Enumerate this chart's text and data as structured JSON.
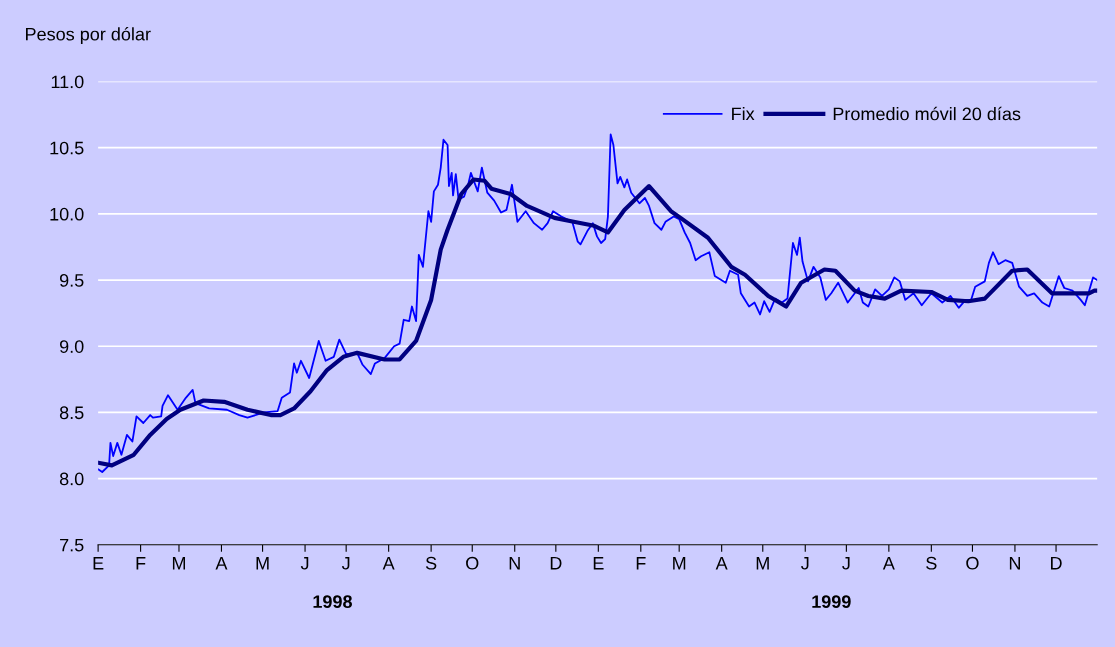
{
  "chart_data": {
    "type": "line",
    "ylabel": "Pesos por dólar",
    "xlim": [
      "1998-01-01",
      "1999-12-31"
    ],
    "ylim": [
      7.5,
      11.0
    ],
    "yticks": [
      {
        "value": 7.5,
        "label": "7.5"
      },
      {
        "value": 8.0,
        "label": "8.0"
      },
      {
        "value": 8.5,
        "label": "8.5"
      },
      {
        "value": 9.0,
        "label": "9.0"
      },
      {
        "value": 9.5,
        "label": "9.5"
      },
      {
        "value": 10.0,
        "label": "10.0"
      },
      {
        "value": 10.5,
        "label": "10.5"
      },
      {
        "value": 11.0,
        "label": "11.0"
      }
    ],
    "annotations": [
      "E",
      "F",
      "M",
      "A",
      "M",
      "J",
      "J",
      "A",
      "S",
      "O",
      "N",
      "D",
      "E",
      "F",
      "M",
      "A",
      "M",
      "J",
      "J",
      "A",
      "S",
      "O",
      "N",
      "D"
    ],
    "xticks": [
      {
        "value": "1998-01-01",
        "label": null
      },
      {
        "value": "1998-02-01",
        "label": null
      },
      {
        "value": "1998-03-01",
        "label": null
      },
      {
        "value": "1998-04-01",
        "label": null
      },
      {
        "value": "1998-05-01",
        "label": null
      },
      {
        "value": "1998-06-01",
        "label": null
      },
      {
        "value": "1998-06-21",
        "label": "1998"
      },
      {
        "value": "1998-07-01",
        "label": null
      },
      {
        "value": "1998-08-01",
        "label": null
      },
      {
        "value": "1998-09-01",
        "label": null
      },
      {
        "value": "1998-10-01",
        "label": null
      },
      {
        "value": "1998-11-01",
        "label": null
      },
      {
        "value": "1998-12-01",
        "label": null
      },
      {
        "value": "1999-01-01",
        "label": null
      },
      {
        "value": "1999-02-01",
        "label": null
      },
      {
        "value": "1999-03-01",
        "label": null
      },
      {
        "value": "1999-04-01",
        "label": null
      },
      {
        "value": "1999-05-01",
        "label": null
      },
      {
        "value": "1999-06-01",
        "label": null
      },
      {
        "value": "1999-06-20",
        "label": "1999"
      },
      {
        "value": "1999-07-01",
        "label": null
      },
      {
        "value": "1999-08-01",
        "label": null
      },
      {
        "value": "1999-09-01",
        "label": null
      },
      {
        "value": "1999-10-01",
        "label": null
      },
      {
        "value": "1999-11-01",
        "label": null
      },
      {
        "value": "1999-12-01",
        "label": null
      }
    ],
    "grid": "y",
    "legend": "top right",
    "marker": "none",
    "line_style": "solid",
    "series": [
      {
        "name": "Fix",
        "color": "#0000ff",
        "x": [
          "1998-01-01",
          "1998-01-04",
          "1998-01-09",
          "1998-01-10",
          "1998-01-12",
          "1998-01-15",
          "1998-01-18",
          "1998-01-22",
          "1998-01-26",
          "1998-01-29",
          "1998-02-03",
          "1998-02-08",
          "1998-02-10",
          "1998-02-16",
          "1998-02-17",
          "1998-02-21",
          "1998-02-28",
          "1998-03-06",
          "1998-03-11",
          "1998-03-13",
          "1998-03-23",
          "1998-04-05",
          "1998-04-14",
          "1998-04-20",
          "1998-05-02",
          "1998-05-12",
          "1998-05-15",
          "1998-05-21",
          "1998-05-24",
          "1998-05-26",
          "1998-05-29",
          "1998-06-04",
          "1998-06-06",
          "1998-06-11",
          "1998-06-16",
          "1998-06-22",
          "1998-06-26",
          "1998-07-01",
          "1998-07-09",
          "1998-07-13",
          "1998-07-19",
          "1998-07-22",
          "1998-07-29",
          "1998-08-05",
          "1998-08-09",
          "1998-08-12",
          "1998-08-16",
          "1998-08-18",
          "1998-08-21",
          "1998-08-23",
          "1998-08-26",
          "1998-08-30",
          "1998-09-01",
          "1998-09-03",
          "1998-09-06",
          "1998-09-08",
          "1998-09-10",
          "1998-09-13",
          "1998-09-14",
          "1998-09-16",
          "1998-09-17",
          "1998-09-19",
          "1998-09-21",
          "1998-09-25",
          "1998-09-28",
          "1998-09-30",
          "1998-10-05",
          "1998-10-08",
          "1998-10-12",
          "1998-10-17",
          "1998-10-22",
          "1998-10-26",
          "1998-10-30",
          "1998-11-03",
          "1998-11-09",
          "1998-11-15",
          "1998-11-21",
          "1998-11-25",
          "1998-11-29",
          "1998-12-05",
          "1998-12-13",
          "1998-12-17",
          "1998-12-19",
          "1998-12-24",
          "1998-12-28",
          "1998-12-31",
          "1999-01-03",
          "1999-01-06",
          "1999-01-08",
          "1999-01-10",
          "1999-01-12",
          "1999-01-15",
          "1999-01-17",
          "1999-01-20",
          "1999-01-22",
          "1999-01-25",
          "1999-01-31",
          "1999-02-04",
          "1999-02-07",
          "1999-02-11",
          "1999-02-16",
          "1999-02-19",
          "1999-02-25",
          "1999-03-01",
          "1999-03-05",
          "1999-03-09",
          "1999-03-13",
          "1999-03-17",
          "1999-03-23",
          "1999-03-27",
          "1999-04-04",
          "1999-04-07",
          "1999-04-13",
          "1999-04-15",
          "1999-04-21",
          "1999-04-25",
          "1999-04-29",
          "1999-05-02",
          "1999-05-06",
          "1999-05-10",
          "1999-05-15",
          "1999-05-19",
          "1999-05-23",
          "1999-05-26",
          "1999-05-28",
          "1999-05-30",
          "1999-06-03",
          "1999-06-07",
          "1999-06-12",
          "1999-06-16",
          "1999-06-20",
          "1999-06-25",
          "1999-07-02",
          "1999-07-10",
          "1999-07-13",
          "1999-07-17",
          "1999-07-22",
          "1999-07-27",
          "1999-08-01",
          "1999-08-05",
          "1999-08-09",
          "1999-08-13",
          "1999-08-19",
          "1999-08-25",
          "1999-09-01",
          "1999-09-09",
          "1999-09-15",
          "1999-09-21",
          "1999-09-26",
          "1999-09-30",
          "1999-10-03",
          "1999-10-10",
          "1999-10-13",
          "1999-10-16",
          "1999-10-20",
          "1999-10-25",
          "1999-10-30",
          "1999-11-04",
          "1999-11-10",
          "1999-11-15",
          "1999-11-21",
          "1999-11-26",
          "1999-11-29",
          "1999-12-03",
          "1999-12-07",
          "1999-12-13",
          "1999-12-19",
          "1999-12-22",
          "1999-12-28",
          "1999-12-31"
        ],
        "values": [
          8.07,
          8.05,
          8.1,
          8.27,
          8.17,
          8.27,
          8.18,
          8.33,
          8.28,
          8.47,
          8.42,
          8.48,
          8.46,
          8.47,
          8.55,
          8.63,
          8.52,
          8.61,
          8.67,
          8.57,
          8.53,
          8.52,
          8.48,
          8.46,
          8.5,
          8.51,
          8.61,
          8.65,
          8.87,
          8.8,
          8.89,
          8.76,
          8.84,
          9.04,
          8.89,
          8.92,
          9.05,
          8.94,
          8.95,
          8.86,
          8.79,
          8.87,
          8.91,
          9.0,
          9.02,
          9.2,
          9.19,
          9.3,
          9.19,
          9.69,
          9.6,
          10.02,
          9.94,
          10.17,
          10.22,
          10.35,
          10.56,
          10.52,
          10.21,
          10.31,
          10.14,
          10.3,
          10.11,
          10.13,
          10.22,
          10.31,
          10.17,
          10.35,
          10.16,
          10.1,
          10.01,
          10.03,
          10.22,
          9.94,
          10.02,
          9.93,
          9.88,
          9.93,
          10.02,
          9.98,
          9.94,
          9.79,
          9.77,
          9.87,
          9.93,
          9.83,
          9.78,
          9.81,
          9.98,
          10.6,
          10.52,
          10.23,
          10.28,
          10.2,
          10.26,
          10.16,
          10.08,
          10.12,
          10.06,
          9.93,
          9.88,
          9.94,
          9.98,
          9.96,
          9.86,
          9.78,
          9.65,
          9.68,
          9.71,
          9.53,
          9.48,
          9.57,
          9.54,
          9.4,
          9.3,
          9.33,
          9.24,
          9.34,
          9.26,
          9.36,
          9.33,
          9.36,
          9.78,
          9.69,
          9.82,
          9.64,
          9.49,
          9.6,
          9.52,
          9.35,
          9.4,
          9.48,
          9.33,
          9.44,
          9.33,
          9.3,
          9.43,
          9.38,
          9.43,
          9.52,
          9.49,
          9.35,
          9.4,
          9.31,
          9.4,
          9.33,
          9.38,
          9.29,
          9.35,
          9.35,
          9.45,
          9.49,
          9.63,
          9.71,
          9.62,
          9.65,
          9.63,
          9.45,
          9.38,
          9.4,
          9.33,
          9.3,
          9.4,
          9.53,
          9.44,
          9.42,
          9.35,
          9.31,
          9.52,
          9.5
        ]
      },
      {
        "name": "Promedio móvil 20 días",
        "color": "#000080",
        "x": [
          "1998-01-01",
          "1998-01-11",
          "1998-01-27",
          "1998-02-08",
          "1998-02-20",
          "1998-03-02",
          "1998-03-19",
          "1998-04-03",
          "1998-04-20",
          "1998-05-07",
          "1998-05-14",
          "1998-05-24",
          "1998-06-05",
          "1998-06-17",
          "1998-06-29",
          "1998-07-09",
          "1998-07-29",
          "1998-08-09",
          "1998-08-21",
          "1998-09-01",
          "1998-09-08",
          "1998-09-13",
          "1998-09-23",
          "1998-10-02",
          "1998-10-10",
          "1998-10-15",
          "1998-10-29",
          "1998-11-10",
          "1998-11-30",
          "1998-12-14",
          "1998-12-29",
          "1999-01-08",
          "1999-01-20",
          "1999-02-07",
          "1999-02-23",
          "1999-03-02",
          "1999-03-22",
          "1999-04-08",
          "1999-04-18",
          "1999-05-05",
          "1999-05-18",
          "1999-05-29",
          "1999-06-15",
          "1999-06-23",
          "1999-07-07",
          "1999-07-17",
          "1999-07-29",
          "1999-08-10",
          "1999-09-01",
          "1999-09-13",
          "1999-09-28",
          "1999-10-10",
          "1999-10-30",
          "1999-11-10",
          "1999-11-28",
          "1999-12-25",
          "1999-12-29",
          "1999-12-31"
        ],
        "values": [
          8.12,
          8.1,
          8.18,
          8.33,
          8.45,
          8.52,
          8.59,
          8.58,
          8.52,
          8.48,
          8.48,
          8.53,
          8.66,
          8.82,
          8.92,
          8.95,
          8.9,
          8.9,
          9.04,
          9.35,
          9.73,
          9.88,
          10.15,
          10.26,
          10.25,
          10.19,
          10.15,
          10.06,
          9.97,
          9.94,
          9.91,
          9.86,
          10.03,
          10.21,
          10.02,
          9.97,
          9.82,
          9.6,
          9.54,
          9.38,
          9.3,
          9.48,
          9.58,
          9.57,
          9.42,
          9.38,
          9.36,
          9.42,
          9.41,
          9.35,
          9.34,
          9.36,
          9.57,
          9.58,
          9.4,
          9.4,
          9.42,
          9.42
        ]
      }
    ]
  }
}
